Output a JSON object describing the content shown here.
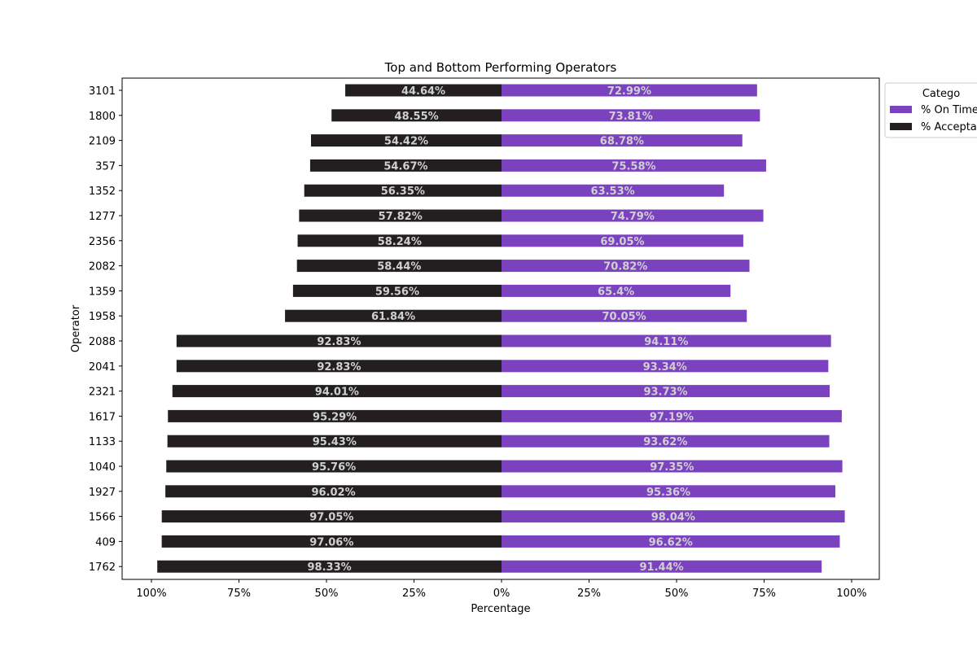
{
  "chart_data": {
    "type": "bar",
    "orientation": "horizontal-diverging",
    "title": "Top and Bottom Performing Operators",
    "xlabel": "Percentage",
    "ylabel": "Operator",
    "xlim": [
      -100,
      100
    ],
    "x_ticks": [
      "100%",
      "75%",
      "50%",
      "25%",
      "0%",
      "25%",
      "50%",
      "75%",
      "100%"
    ],
    "grid": false,
    "legend": {
      "title": "Catego",
      "placement": "top-right, outside plot, clipped",
      "entries": [
        "% On Time",
        "% Accepta"
      ]
    },
    "categories": [
      "3101",
      "1800",
      "2109",
      "357",
      "1352",
      "1277",
      "2356",
      "2082",
      "1359",
      "1958",
      "2088",
      "2041",
      "2321",
      "1617",
      "1133",
      "1040",
      "1927",
      "1566",
      "409",
      "1762"
    ],
    "series": [
      {
        "name": "% On Time",
        "side": "right",
        "color": "#7b42c0",
        "values": [
          72.99,
          73.81,
          68.78,
          75.58,
          63.53,
          74.79,
          69.05,
          70.82,
          65.4,
          70.05,
          94.11,
          93.34,
          93.73,
          97.19,
          93.62,
          97.35,
          95.36,
          98.04,
          96.62,
          91.44
        ],
        "labels": [
          "72.99%",
          "73.81%",
          "68.78%",
          "75.58%",
          "63.53%",
          "74.79%",
          "69.05%",
          "70.82%",
          "65.4%",
          "70.05%",
          "94.11%",
          "93.34%",
          "93.73%",
          "97.19%",
          "93.62%",
          "97.35%",
          "95.36%",
          "98.04%",
          "96.62%",
          "91.44%"
        ]
      },
      {
        "name": "% Accepta",
        "side": "left",
        "color": "#231f20",
        "values": [
          44.64,
          48.55,
          54.42,
          54.67,
          56.35,
          57.82,
          58.24,
          58.44,
          59.56,
          61.84,
          92.83,
          92.83,
          94.01,
          95.29,
          95.43,
          95.76,
          96.02,
          97.05,
          97.06,
          98.33
        ],
        "labels": [
          "44.64%",
          "48.55%",
          "54.42%",
          "54.67%",
          "56.35%",
          "57.82%",
          "58.24%",
          "58.44%",
          "59.56%",
          "61.84%",
          "92.83%",
          "92.83%",
          "94.01%",
          "95.29%",
          "95.43%",
          "95.76%",
          "96.02%",
          "97.05%",
          "97.06%",
          "98.33%"
        ]
      }
    ]
  }
}
